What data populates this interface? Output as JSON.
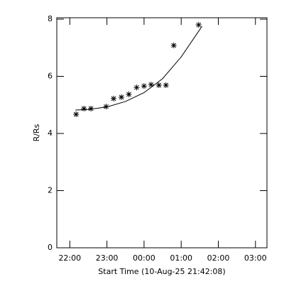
{
  "chart_data": {
    "type": "scatter",
    "xlabel": "Start Time (10-Aug-25 21:42:08)",
    "ylabel": "R/Rs",
    "x": [
      22.17,
      22.38,
      22.57,
      22.98,
      23.18,
      23.39,
      23.59,
      23.8,
      24.0,
      24.19,
      24.4,
      24.59,
      24.8,
      25.47
    ],
    "values": [
      4.67,
      4.87,
      4.87,
      4.94,
      5.22,
      5.27,
      5.37,
      5.61,
      5.66,
      5.71,
      5.69,
      5.69,
      7.08,
      7.8
    ],
    "fit": {
      "x": [
        22.15,
        22.5,
        23.0,
        23.5,
        24.0,
        24.5,
        25.0,
        25.56
      ],
      "values": [
        4.82,
        4.84,
        4.93,
        5.12,
        5.43,
        5.92,
        6.68,
        7.75
      ]
    },
    "color": "#000000",
    "xlim": [
      21.65,
      27.31
    ],
    "xticks": [
      {
        "value": 22,
        "label": "22:00"
      },
      {
        "value": 23,
        "label": "23:00"
      },
      {
        "value": 24,
        "label": "00:00"
      },
      {
        "value": 25,
        "label": "01:00"
      },
      {
        "value": 26,
        "label": "02:00"
      },
      {
        "value": 27,
        "label": "03:00"
      }
    ],
    "ylim": [
      0,
      8.05
    ],
    "yticks": [
      0,
      2,
      4,
      6,
      8
    ]
  }
}
